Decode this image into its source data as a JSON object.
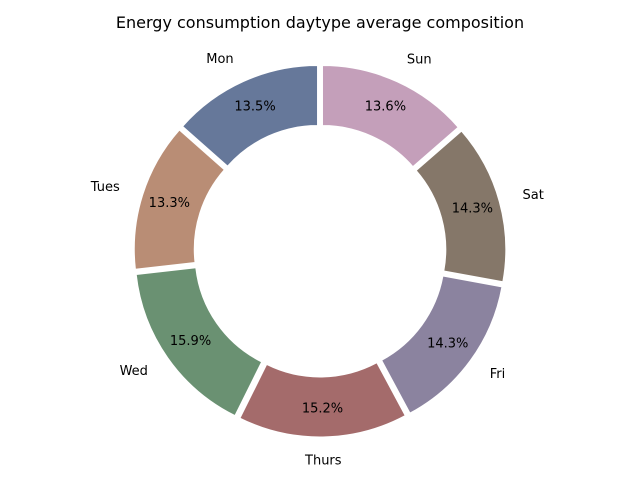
{
  "chart_data": {
    "type": "pie",
    "style": "donut",
    "title": "Energy consumption daytype average composition",
    "categories": [
      "Mon",
      "Tues",
      "Wed",
      "Thurs",
      "Fri",
      "Sat",
      "Sun"
    ],
    "values": [
      13.5,
      13.3,
      15.9,
      15.2,
      14.3,
      14.3,
      13.6
    ],
    "value_labels": [
      "13.5%",
      "13.3%",
      "15.9%",
      "15.2%",
      "14.3%",
      "14.3%",
      "13.6%"
    ],
    "colors": [
      "#66789a",
      "#b98d75",
      "#6a9172",
      "#a46b6b",
      "#8b839f",
      "#857769",
      "#c49fba"
    ],
    "start_angle_deg": 90,
    "direction": "counterclockwise",
    "exploded": true,
    "legend": "none"
  }
}
